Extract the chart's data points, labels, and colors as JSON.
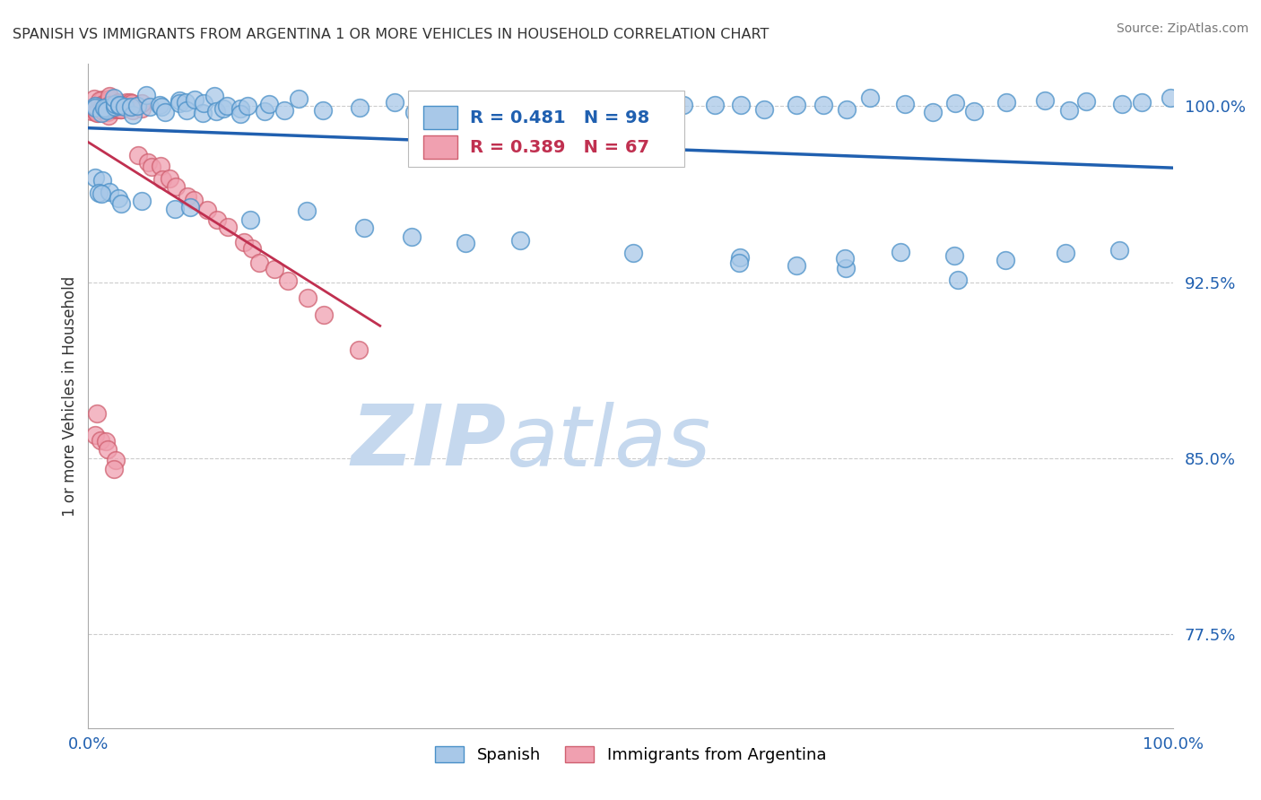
{
  "title": "SPANISH VS IMMIGRANTS FROM ARGENTINA 1 OR MORE VEHICLES IN HOUSEHOLD CORRELATION CHART",
  "source": "Source: ZipAtlas.com",
  "legend_blue_r": "R = 0.481",
  "legend_blue_n": "N = 98",
  "legend_pink_r": "R = 0.389",
  "legend_pink_n": "N = 67",
  "blue_fill": "#a8c8e8",
  "blue_edge": "#4a90c8",
  "pink_fill": "#f0a0b0",
  "pink_edge": "#d06070",
  "trend_blue": "#2060b0",
  "trend_pink": "#c03050",
  "watermark_zip_color": "#c5d8ee",
  "watermark_atlas_color": "#c5d8ee",
  "ylabel": "1 or more Vehicles in Household",
  "yticks": [
    0.775,
    0.85,
    0.925,
    1.0
  ],
  "ytick_labels": [
    "77.5%",
    "85.0%",
    "92.5%",
    "100.0%"
  ],
  "xtick_labels": [
    "0.0%",
    "",
    "",
    "",
    "100.0%"
  ],
  "xlim": [
    0.0,
    1.0
  ],
  "ylim": [
    0.735,
    1.018
  ],
  "figsize": [
    14.06,
    8.92
  ],
  "dpi": 100,
  "blue_x": [
    0.005,
    0.007,
    0.01,
    0.012,
    0.015,
    0.018,
    0.02,
    0.022,
    0.025,
    0.027,
    0.03,
    0.035,
    0.04,
    0.045,
    0.05,
    0.055,
    0.06,
    0.065,
    0.07,
    0.075,
    0.08,
    0.085,
    0.09,
    0.095,
    0.1,
    0.105,
    0.11,
    0.115,
    0.12,
    0.125,
    0.13,
    0.135,
    0.14,
    0.15,
    0.16,
    0.17,
    0.18,
    0.2,
    0.22,
    0.25,
    0.28,
    0.3,
    0.32,
    0.35,
    0.38,
    0.4,
    0.42,
    0.45,
    0.48,
    0.5,
    0.52,
    0.55,
    0.58,
    0.6,
    0.62,
    0.65,
    0.68,
    0.7,
    0.72,
    0.75,
    0.78,
    0.8,
    0.82,
    0.85,
    0.88,
    0.9,
    0.92,
    0.95,
    0.97,
    1.0,
    0.005,
    0.008,
    0.01,
    0.015,
    0.02,
    0.025,
    0.03,
    0.05,
    0.08,
    0.1,
    0.15,
    0.2,
    0.25,
    0.3,
    0.35,
    0.4,
    0.5,
    0.6,
    0.7,
    0.8,
    0.6,
    0.65,
    0.7,
    0.75,
    0.8,
    0.85,
    0.9,
    0.95
  ],
  "blue_y": [
    1.0,
    1.0,
    1.0,
    1.0,
    1.0,
    1.0,
    1.0,
    1.0,
    1.0,
    1.0,
    1.0,
    1.0,
    1.0,
    1.0,
    1.0,
    1.0,
    1.0,
    1.0,
    1.0,
    1.0,
    1.0,
    1.0,
    1.0,
    1.0,
    1.0,
    1.0,
    1.0,
    1.0,
    1.0,
    1.0,
    1.0,
    1.0,
    1.0,
    1.0,
    1.0,
    1.0,
    1.0,
    1.0,
    1.0,
    1.0,
    1.0,
    1.0,
    1.0,
    1.0,
    1.0,
    1.0,
    1.0,
    1.0,
    1.0,
    1.0,
    1.0,
    1.0,
    1.0,
    1.0,
    1.0,
    1.0,
    1.0,
    1.0,
    1.0,
    1.0,
    1.0,
    1.0,
    1.0,
    1.0,
    1.0,
    1.0,
    1.0,
    1.0,
    1.0,
    1.0,
    0.97,
    0.97,
    0.965,
    0.965,
    0.963,
    0.96,
    0.958,
    0.958,
    0.956,
    0.954,
    0.952,
    0.95,
    0.947,
    0.946,
    0.944,
    0.942,
    0.938,
    0.934,
    0.93,
    0.926,
    0.935,
    0.935,
    0.936,
    0.936,
    0.936,
    0.937,
    0.937,
    0.938
  ],
  "pink_x": [
    0.005,
    0.006,
    0.007,
    0.008,
    0.009,
    0.01,
    0.01,
    0.011,
    0.011,
    0.012,
    0.012,
    0.013,
    0.013,
    0.014,
    0.015,
    0.015,
    0.016,
    0.016,
    0.017,
    0.018,
    0.019,
    0.02,
    0.02,
    0.021,
    0.022,
    0.023,
    0.024,
    0.025,
    0.026,
    0.027,
    0.028,
    0.03,
    0.032,
    0.034,
    0.036,
    0.038,
    0.04,
    0.042,
    0.045,
    0.048,
    0.05,
    0.055,
    0.06,
    0.065,
    0.07,
    0.075,
    0.08,
    0.09,
    0.1,
    0.11,
    0.12,
    0.13,
    0.14,
    0.15,
    0.16,
    0.17,
    0.18,
    0.2,
    0.22,
    0.25,
    0.005,
    0.008,
    0.01,
    0.015,
    0.02,
    0.025,
    0.03
  ],
  "pink_y": [
    1.0,
    1.0,
    1.0,
    1.0,
    1.0,
    1.0,
    1.0,
    1.0,
    1.0,
    1.0,
    1.0,
    1.0,
    1.0,
    1.0,
    1.0,
    1.0,
    1.0,
    1.0,
    1.0,
    1.0,
    1.0,
    1.0,
    1.0,
    1.0,
    1.0,
    1.0,
    1.0,
    1.0,
    1.0,
    1.0,
    1.0,
    1.0,
    1.0,
    1.0,
    1.0,
    1.0,
    1.0,
    1.0,
    1.0,
    1.0,
    0.978,
    0.976,
    0.974,
    0.972,
    0.97,
    0.968,
    0.966,
    0.962,
    0.958,
    0.954,
    0.95,
    0.946,
    0.942,
    0.938,
    0.934,
    0.93,
    0.926,
    0.918,
    0.91,
    0.898,
    0.865,
    0.862,
    0.86,
    0.855,
    0.852,
    0.848,
    0.844
  ]
}
